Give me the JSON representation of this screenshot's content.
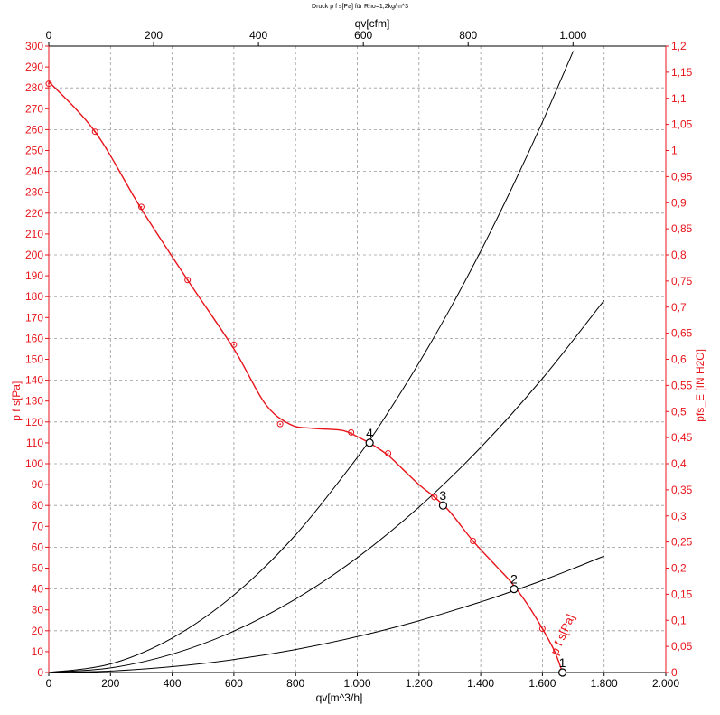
{
  "chart_data": {
    "type": "line",
    "title": "Druck p f s[Pa] für Rho=1,2kg/m^3",
    "xlabel": "qv[m^3/h]",
    "x2label": "qv[cfm]",
    "ylabel": "p f s[Pa]",
    "y2label": "pfs_E [IN H2O]",
    "xlim": [
      0,
      2000
    ],
    "ylim": [
      0,
      300
    ],
    "x2lim": [
      0,
      1177
    ],
    "y2lim": [
      0,
      1.2
    ],
    "grid": true,
    "x_ticks": [
      "0",
      "200",
      "400",
      "600",
      "800",
      "1.000",
      "1.200",
      "1.400",
      "1.600",
      "1.800",
      "2.000"
    ],
    "y_ticks": [
      "0",
      "10",
      "20",
      "30",
      "40",
      "50",
      "60",
      "70",
      "80",
      "90",
      "100",
      "110",
      "120",
      "130",
      "140",
      "150",
      "160",
      "170",
      "180",
      "190",
      "200",
      "210",
      "220",
      "230",
      "240",
      "250",
      "260",
      "270",
      "280",
      "290",
      "300"
    ],
    "x2_ticks": [
      "0",
      "200",
      "400",
      "600",
      "800",
      "1.000"
    ],
    "y2_ticks": [
      "0",
      "0,05",
      "0,1",
      "0,15",
      "0,2",
      "0,25",
      "0,3",
      "0,35",
      "0,4",
      "0,45",
      "0,5",
      "0,55",
      "0,6",
      "0,65",
      "0,7",
      "0,75",
      "0,8",
      "0,85",
      "0,9",
      "0,95",
      "1",
      "1,05",
      "1,1",
      "1,15",
      "1,2"
    ],
    "fan_curve": {
      "name": "p f s[Pa]",
      "color": "#e8141b",
      "x": [
        0,
        150,
        300,
        450,
        600,
        700,
        780,
        850,
        950,
        1000,
        1050,
        1100,
        1150,
        1200,
        1250,
        1300,
        1375,
        1450,
        1500,
        1550,
        1600,
        1640,
        1665
      ],
      "y": [
        283,
        259,
        222,
        188,
        155,
        129,
        119,
        117,
        116,
        113,
        109,
        104,
        97,
        90,
        84,
        77,
        63,
        51,
        43,
        33,
        21,
        10,
        0
      ],
      "markers_x": [
        0,
        150,
        300,
        450,
        600,
        750,
        980,
        1100,
        1250,
        1375,
        1600
      ],
      "markers_y": [
        282,
        259,
        223,
        188,
        157,
        119,
        115,
        105,
        84,
        63,
        21
      ],
      "label": "p f s[Pa]"
    },
    "system_curves": [
      {
        "x": [
          0,
          200,
          400,
          600,
          800,
          1000,
          1200,
          1400,
          1500,
          1600,
          1700,
          1800
        ],
        "y": [
          0,
          0.7,
          2.8,
          6.2,
          11,
          17.2,
          24.8,
          33.8,
          38.8,
          44.1,
          49.8,
          55.8
        ]
      },
      {
        "x": [
          0,
          200,
          400,
          600,
          800,
          1000,
          1200,
          1400,
          1600,
          1800
        ],
        "y": [
          0,
          2.2,
          8.8,
          19.8,
          35.2,
          55,
          79.2,
          107.8,
          140.8,
          178.2
        ]
      },
      {
        "x": [
          0,
          200,
          400,
          600,
          800,
          1000,
          1100,
          1200,
          1300,
          1400,
          1500,
          1600,
          1700
        ],
        "y": [
          0,
          4.1,
          16.5,
          37.1,
          65.9,
          103,
          124.6,
          148.3,
          174,
          201.8,
          231.7,
          263.6,
          297.6
        ]
      }
    ],
    "operating_points": [
      {
        "label": "1",
        "x": 1665,
        "y": 0
      },
      {
        "label": "2",
        "x": 1508,
        "y": 40
      },
      {
        "label": "3",
        "x": 1278,
        "y": 80
      },
      {
        "label": "4",
        "x": 1040,
        "y": 110
      }
    ],
    "colors": {
      "axis_red": "#e8141b",
      "axis_black": "#000000",
      "grid": "#9a9a9a"
    }
  }
}
